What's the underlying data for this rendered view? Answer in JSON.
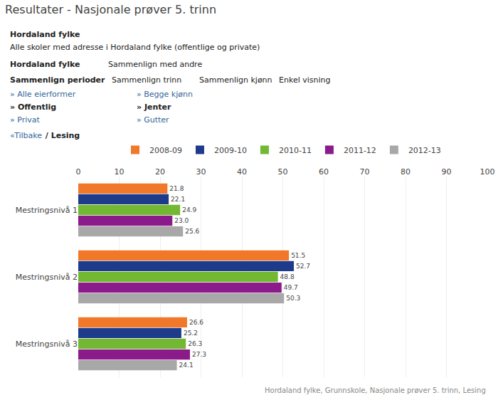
{
  "chart_data": {
    "type": "bar",
    "orientation": "horizontal",
    "title": "Resultater - Nasjonale prøver 5. trinn",
    "annotations": [
      "Hordaland fylke",
      "Alle skoler med adresse i Hordaland fylke (offentlige og private)",
      "Hordaland fylke",
      "Sammenlign med andre",
      "Sammenlign perioder",
      "Sammenlign trinn",
      "Sammenlign kjønn",
      "Enkel visning",
      "» Alle eierformer",
      "» Offentlig",
      "» Privat",
      "» Begge kjønn",
      "» Jenter",
      "» Gutter",
      "«Tilbake",
      " / Lesing",
      "Hordaland fylke, Grunnskole, Nasjonale prøver 5. trinn, Lesing"
    ],
    "categories": [
      "Mestringsnivå 1",
      "Mestringsnivå 2",
      "Mestringsnivå 3"
    ],
    "series": [
      {
        "name": "2008-09",
        "color": "#f07828",
        "values": [
          21.8,
          51.5,
          26.6
        ]
      },
      {
        "name": "2009-10",
        "color": "#1e3a8a",
        "values": [
          22.1,
          52.7,
          25.2
        ]
      },
      {
        "name": "2010-11",
        "color": "#72b832",
        "values": [
          24.9,
          48.8,
          26.3
        ]
      },
      {
        "name": "2011-12",
        "color": "#8b1a8b",
        "values": [
          23.0,
          49.7,
          27.3
        ],
        "value_labels": [
          "23.0",
          "49.7",
          "27.3"
        ]
      },
      {
        "name": "2012-13",
        "color": "#a8a8a8",
        "values": [
          25.6,
          50.3,
          24.1
        ]
      }
    ],
    "xlim": [
      0,
      100
    ],
    "xticks": [
      0,
      10,
      20,
      30,
      40,
      50,
      60,
      70,
      80,
      90,
      100
    ],
    "grid": true,
    "legend": "top",
    "data_labels": true
  }
}
